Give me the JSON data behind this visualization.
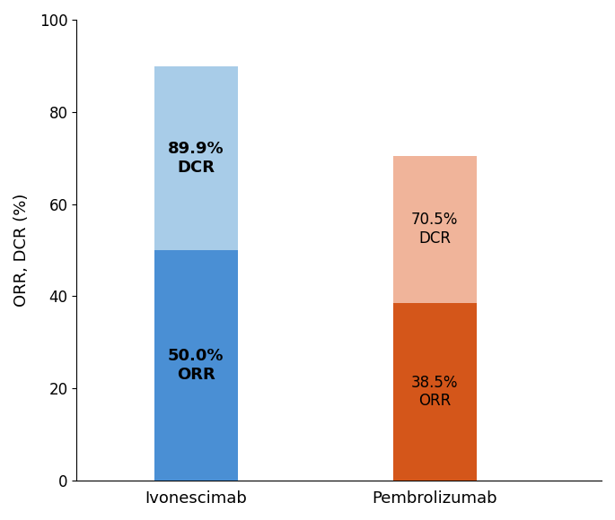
{
  "categories": [
    "Ivonescimab",
    "Pembrolizumab"
  ],
  "orr_values": [
    50.0,
    38.5
  ],
  "dcr_values": [
    89.9,
    70.5
  ],
  "bar_positions": [
    1,
    2
  ],
  "bar_width": 0.35,
  "colors_orr": [
    "#4a8fd4",
    "#d4561a"
  ],
  "colors_dcr": [
    "#a8cce8",
    "#f0b49a"
  ],
  "ylabel": "ORR, DCR (%)",
  "ylim": [
    0,
    100
  ],
  "yticks": [
    0,
    20,
    40,
    60,
    80,
    100
  ],
  "label_fontsize_ivon": 13,
  "label_fontsize_pemb": 12,
  "axis_label_fontsize": 13,
  "tick_fontsize": 12,
  "xlim": [
    0.5,
    2.7
  ]
}
